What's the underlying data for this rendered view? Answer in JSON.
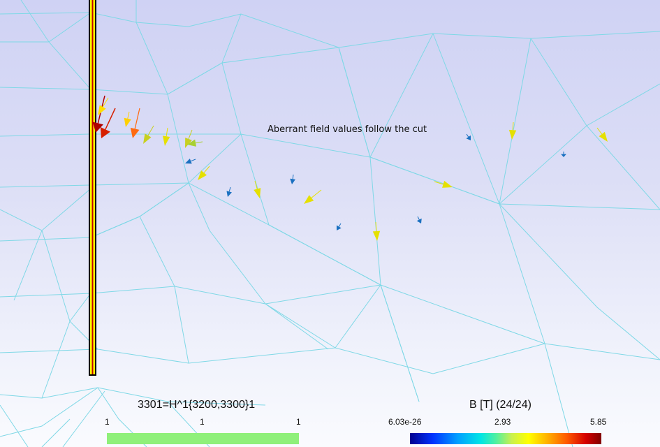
{
  "annotation": {
    "text": "Aberrant field values follow the cut"
  },
  "legend_left": {
    "title": "3301=H^1{3200,3300}1",
    "ticks": [
      "1",
      "1",
      "1"
    ],
    "bar_color": "#8ff07a"
  },
  "legend_right": {
    "title": "B [T] (24/24)",
    "ticks": [
      "6.03e-26",
      "2.93",
      "5.85"
    ],
    "colormap": [
      "#00008f",
      "#0033ff",
      "#00a0ff",
      "#00e5e5",
      "#c8f050",
      "#ffff00",
      "#ffb000",
      "#ff5a00",
      "#d40000",
      "#800000"
    ]
  },
  "colors": {
    "background_top": "#cfd2f4",
    "background_bottom": "#fafbfe",
    "mesh": "#7fd8e6",
    "cut_strip_fill": "#ffff00",
    "cut_strip_center": "#c00000",
    "cut_strip_border": "#000000"
  },
  "icons": {
    "field_vector": "arrow-glyph"
  }
}
